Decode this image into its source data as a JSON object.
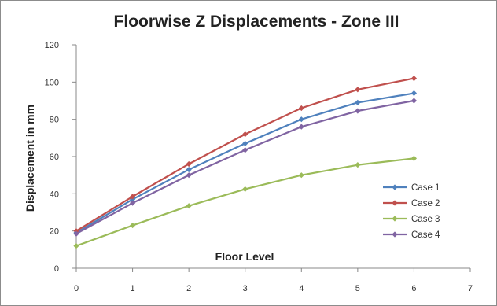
{
  "chart_data": {
    "type": "line",
    "title": "Floorwise Z Displacements  - Zone III",
    "xlabel": "Floor Level",
    "ylabel": "Displacement in mm",
    "x": [
      0,
      1,
      2,
      3,
      4,
      5,
      6
    ],
    "xlim": [
      0,
      7
    ],
    "ylim": [
      0,
      120
    ],
    "xticks": [
      0,
      1,
      2,
      3,
      4,
      5,
      6,
      7
    ],
    "yticks": [
      0,
      20,
      40,
      60,
      80,
      100,
      120
    ],
    "grid": false,
    "legend_position": "right",
    "series": [
      {
        "name": "Case 1",
        "color": "#4f81bd",
        "values": [
          19,
          37,
          53,
          67,
          80,
          89,
          94
        ]
      },
      {
        "name": "Case 2",
        "color": "#c0504d",
        "values": [
          20,
          38.5,
          56,
          72,
          86,
          96,
          102
        ]
      },
      {
        "name": "Case 3",
        "color": "#9bbb59",
        "values": [
          12,
          23,
          33.5,
          42.5,
          50,
          55.5,
          59
        ]
      },
      {
        "name": "Case 4",
        "color": "#8064a2",
        "values": [
          18.5,
          35,
          50,
          63.5,
          76,
          84.5,
          90
        ]
      }
    ]
  }
}
